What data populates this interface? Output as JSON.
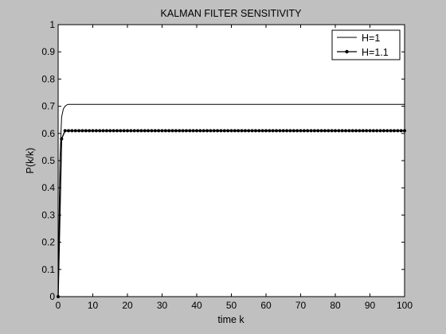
{
  "chart_data": {
    "type": "line",
    "title": "KALMAN FILTER SENSITIVITY",
    "xlabel": "time k",
    "ylabel": "P(k/k)",
    "xlim": [
      0,
      100
    ],
    "ylim": [
      0,
      1
    ],
    "xticks": [
      0,
      10,
      20,
      30,
      40,
      50,
      60,
      70,
      80,
      90,
      100
    ],
    "yticks": [
      0,
      0.1,
      0.2,
      0.3,
      0.4,
      0.5,
      0.6,
      0.7,
      0.8,
      0.9,
      1
    ],
    "grid": false,
    "legend_position": "top-right",
    "series": [
      {
        "name": "H=1",
        "color": "#000000",
        "marker": "none",
        "x": [
          0,
          0.5,
          1,
          1.5,
          2,
          2.5,
          3,
          4,
          5,
          10,
          20,
          30,
          40,
          50,
          60,
          70,
          80,
          90,
          100
        ],
        "y": [
          0,
          0.5,
          0.66,
          0.69,
          0.7,
          0.705,
          0.707,
          0.707,
          0.707,
          0.707,
          0.707,
          0.707,
          0.707,
          0.707,
          0.707,
          0.707,
          0.707,
          0.707,
          0.707
        ]
      },
      {
        "name": "H=1.1",
        "color": "#000000",
        "marker": "dot",
        "x_start": 0,
        "x_end": 100,
        "x_step": 1,
        "y_head": [
          0,
          0.58,
          0.61
        ],
        "y_steady": 0.61
      }
    ]
  }
}
